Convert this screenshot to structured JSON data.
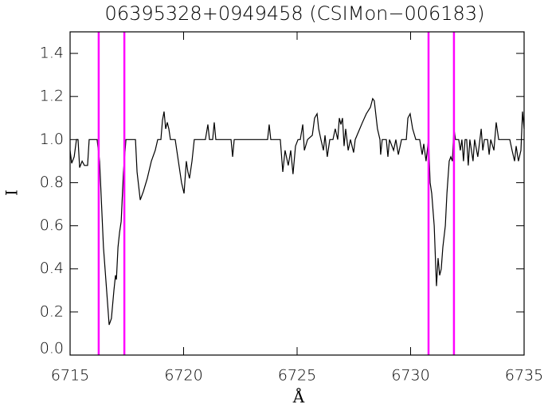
{
  "chart_data": {
    "type": "line",
    "title": "06395328+0949458 (CSIMon−006183)",
    "xlabel": "Å",
    "ylabel": "I",
    "xlim": [
      6715,
      6735
    ],
    "xticks": [
      6715,
      6720,
      6725,
      6730,
      6735
    ],
    "ylim": [
      0,
      1.5
    ],
    "yticks": [
      {
        "value": 0,
        "label": "0.0"
      },
      0.2,
      0.4,
      0.6,
      0.8,
      {
        "value": 1,
        "label": "1.0"
      },
      1.2,
      1.4
    ],
    "x": [
      6715.0,
      6715.07,
      6715.18,
      6715.28,
      6715.35,
      6715.42,
      6715.53,
      6715.63,
      6715.77,
      6715.84,
      6716.19,
      6716.3,
      6716.47,
      6716.61,
      6716.72,
      6716.82,
      6716.93,
      6717.0,
      6717.04,
      6717.11,
      6717.18,
      6717.25,
      6717.35,
      6717.46,
      6717.88,
      6717.95,
      6718.09,
      6718.23,
      6718.4,
      6718.58,
      6718.75,
      6718.86,
      6719.0,
      6719.07,
      6719.14,
      6719.21,
      6719.28,
      6719.35,
      6719.42,
      6719.63,
      6719.77,
      6719.91,
      6720.02,
      6720.12,
      6720.19,
      6720.26,
      6720.37,
      6720.47,
      6720.96,
      6721.07,
      6721.14,
      6721.28,
      6721.35,
      6721.42,
      6722.09,
      6722.16,
      6722.23,
      6723.7,
      6723.77,
      6723.84,
      6724.26,
      6724.37,
      6724.47,
      6724.61,
      6724.72,
      6724.82,
      6724.93,
      6725.04,
      6725.14,
      6725.25,
      6725.32,
      6725.46,
      6725.67,
      6725.77,
      6725.88,
      6725.95,
      6726.05,
      6726.16,
      6726.23,
      6726.33,
      6726.44,
      6726.58,
      6726.68,
      6726.79,
      6726.86,
      6726.93,
      6727.0,
      6727.07,
      6727.14,
      6727.25,
      6727.35,
      6727.49,
      6727.56,
      6727.88,
      6728.05,
      6728.23,
      6728.33,
      6728.4,
      6728.54,
      6728.65,
      6728.68,
      6728.75,
      6728.93,
      6729.0,
      6729.07,
      6729.25,
      6729.35,
      6729.46,
      6729.6,
      6729.81,
      6729.88,
      6729.98,
      6730.09,
      6730.23,
      6730.4,
      6730.51,
      6730.58,
      6730.68,
      6730.79,
      6730.86,
      6730.93,
      6731.04,
      6731.11,
      6731.14,
      6731.21,
      6731.28,
      6731.35,
      6731.42,
      6731.53,
      6731.6,
      6731.7,
      6731.77,
      6731.84,
      6731.91,
      6731.98,
      6732.12,
      6732.19,
      6732.26,
      6732.33,
      6732.4,
      6732.47,
      6732.54,
      6732.61,
      6732.68,
      6732.75,
      6732.82,
      6732.96,
      6733.11,
      6733.18,
      6733.25,
      6733.39,
      6733.46,
      6733.53,
      6733.67,
      6733.77,
      6733.88,
      6734.37,
      6734.47,
      6734.58,
      6734.65,
      6734.75,
      6734.86,
      6734.93,
      6735.0
    ],
    "series": [
      {
        "color": "#000000",
        "values": [
          0.95,
          0.89,
          0.92,
          1.0,
          1.0,
          0.87,
          0.9,
          0.88,
          0.88,
          1.0,
          1.0,
          0.9,
          0.5,
          0.3,
          0.14,
          0.17,
          0.3,
          0.37,
          0.35,
          0.5,
          0.57,
          0.62,
          0.85,
          1.0,
          1.0,
          0.85,
          0.72,
          0.76,
          0.82,
          0.9,
          0.95,
          1.0,
          1.0,
          1.09,
          1.13,
          1.05,
          1.08,
          1.05,
          1.0,
          1.0,
          0.9,
          0.8,
          0.75,
          0.9,
          0.85,
          0.82,
          0.9,
          1.0,
          1.0,
          1.07,
          1.0,
          1.0,
          1.08,
          1.0,
          1.0,
          0.92,
          1.0,
          1.0,
          1.07,
          1.0,
          1.0,
          0.85,
          0.95,
          0.88,
          0.95,
          0.84,
          0.97,
          1.0,
          1.0,
          1.07,
          0.95,
          1.0,
          1.02,
          1.1,
          1.12,
          1.05,
          1.0,
          0.95,
          1.02,
          0.92,
          1.0,
          1.0,
          1.05,
          1.0,
          1.1,
          1.07,
          1.1,
          0.97,
          1.05,
          0.95,
          1.0,
          0.94,
          1.0,
          1.08,
          1.12,
          1.15,
          1.19,
          1.18,
          1.05,
          1.0,
          0.93,
          1.0,
          1.0,
          0.92,
          1.0,
          0.95,
          1.0,
          0.93,
          1.0,
          1.0,
          1.1,
          1.12,
          1.05,
          1.0,
          1.0,
          0.93,
          0.98,
          0.9,
          1.0,
          0.8,
          0.75,
          0.6,
          0.4,
          0.32,
          0.45,
          0.37,
          0.4,
          0.5,
          0.6,
          0.75,
          0.9,
          0.92,
          0.9,
          1.05,
          1.0,
          1.0,
          0.95,
          1.0,
          0.9,
          1.0,
          1.0,
          0.88,
          1.0,
          0.95,
          0.9,
          1.0,
          0.92,
          1.05,
          0.95,
          1.0,
          1.0,
          0.93,
          1.0,
          0.95,
          1.08,
          1.0,
          1.0,
          0.95,
          0.9,
          0.97,
          0.9,
          0.95,
          1.13,
          1.05
        ]
      }
    ],
    "vlines": {
      "color": "#ff00ff",
      "x": [
        6716.26,
        6717.39,
        6730.79,
        6731.91
      ]
    }
  }
}
